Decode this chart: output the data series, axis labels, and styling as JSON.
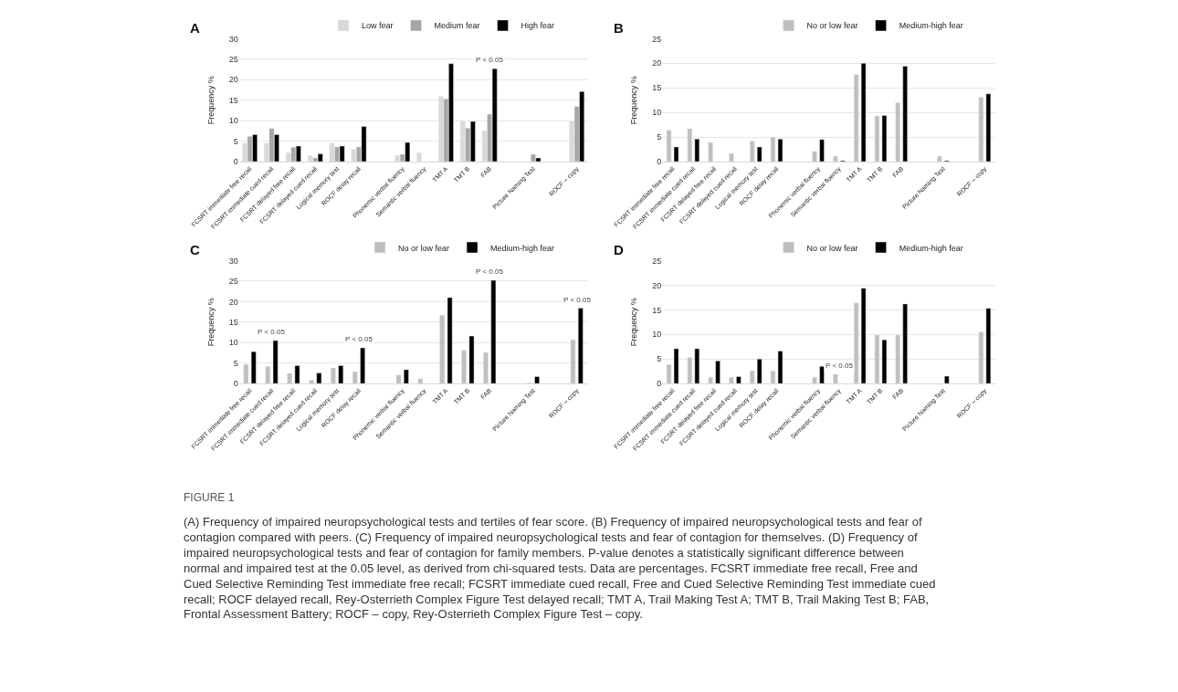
{
  "chart_data": [
    {
      "type": "bar",
      "title": "A",
      "ylabel": "Frequency %",
      "categories": [
        "FCSRT immediate free recall",
        "FCSRT immediate cued recall",
        "FCSRT delayed free recall",
        "FCSRT delayed cued recall",
        "Logical memory test",
        "ROCF delay recall",
        null,
        "Phonemic verbal fluency",
        "Semantic verbal fluency",
        "TMT A",
        "TMT B",
        "FAB",
        null,
        "Picture Naming Test",
        null,
        "ROCF – copy"
      ],
      "ylim": [
        0,
        30
      ],
      "yticks": [
        0,
        5,
        10,
        15,
        20,
        25,
        30
      ],
      "grid": "y",
      "legend": "top right",
      "series": [
        {
          "name": "Low fear",
          "color": "#d9d9d9",
          "values": [
            4.5,
            4.5,
            2.2,
            1.5,
            4.5,
            3.0,
            null,
            1.5,
            2.2,
            15.9,
            9.9,
            7.6,
            null,
            null,
            null,
            9.9
          ]
        },
        {
          "name": "Medium fear",
          "color": "#a6a6a6",
          "values": [
            6.2,
            8.1,
            3.5,
            0.9,
            3.6,
            3.6,
            null,
            1.8,
            null,
            15.3,
            8.2,
            11.6,
            null,
            1.8,
            null,
            13.5
          ]
        },
        {
          "name": "High fear",
          "color": "#000000",
          "values": [
            6.6,
            6.6,
            3.8,
            1.9,
            3.8,
            8.6,
            null,
            4.7,
            null,
            23.9,
            9.8,
            22.7,
            null,
            0.9,
            null,
            17.1
          ]
        }
      ],
      "annotations": [
        {
          "text": "P < 0.05",
          "x": "FAB",
          "y": 22.7
        }
      ]
    },
    {
      "type": "bar",
      "title": "B",
      "ylabel": "Frequency %",
      "categories": [
        "FCSRT immediate free recall",
        "FCSRT immediate cued recall",
        "FCSRT delayed free recall",
        "FCSRT delayed cued recall",
        "Logical memory test",
        "ROCF delay recall",
        null,
        "Phonemic verbal fluency",
        "Semantic verbal fluency",
        "TMT A",
        "TMT B",
        "FAB",
        null,
        "Picture Naming Test",
        null,
        "ROCF – copy"
      ],
      "ylim": [
        0,
        25
      ],
      "yticks": [
        0,
        5,
        10,
        15,
        20,
        25
      ],
      "grid": "y",
      "legend": "top right",
      "series": [
        {
          "name": "No or low fear",
          "color": "#bfbfbf",
          "values": [
            6.4,
            6.7,
            3.9,
            1.7,
            4.2,
            5.0,
            null,
            2.1,
            1.1,
            17.7,
            9.3,
            12.0,
            null,
            1.1,
            null,
            13.1
          ]
        },
        {
          "name": "Medium-high fear",
          "color": "#000000",
          "values": [
            3.0,
            4.6,
            null,
            null,
            3.0,
            4.6,
            null,
            4.5,
            0.2,
            20.0,
            9.4,
            19.4,
            null,
            0.2,
            null,
            13.8
          ]
        }
      ]
    },
    {
      "type": "bar",
      "title": "C",
      "ylabel": "Frequency %",
      "categories": [
        "FCSRT immediate free recall",
        "FCSRT immediate cued recall",
        "FCSRT delayed free recall",
        "FCSRT delayed cued recall",
        "Logical memory test",
        "ROCF delay recall",
        null,
        "Phonemic verbal fluency",
        "Semantic verbal fluency",
        "TMT A",
        "TMT B",
        "FAB",
        null,
        "Picture Naming Test",
        null,
        "ROCF – copy"
      ],
      "ylim": [
        0,
        30
      ],
      "yticks": [
        0,
        5,
        10,
        15,
        20,
        25,
        30
      ],
      "grid": "y",
      "legend": "top right",
      "series": [
        {
          "name": "No or low fear",
          "color": "#bfbfbf",
          "values": [
            4.7,
            4.2,
            2.5,
            0.8,
            3.8,
            2.9,
            null,
            2.1,
            1.2,
            16.7,
            8.1,
            7.6,
            null,
            0.2,
            null,
            10.7
          ]
        },
        {
          "name": "Medium-high fear",
          "color": "#000000",
          "values": [
            7.8,
            10.5,
            4.4,
            2.6,
            4.4,
            8.7,
            null,
            3.4,
            null,
            21.0,
            11.6,
            25.2,
            null,
            1.7,
            null,
            18.4
          ]
        }
      ],
      "annotations": [
        {
          "text": "P < 0.05",
          "x": "FCSRT immediate cued recall",
          "y": 10.5
        },
        {
          "text": "P < 0.05",
          "x": "ROCF delay recall",
          "y": 8.7
        },
        {
          "text": "P < 0.05",
          "x": "FAB",
          "y": 25.2
        },
        {
          "text": "P < 0.05",
          "x": "ROCF – copy",
          "y": 18.4
        }
      ]
    },
    {
      "type": "bar",
      "title": "D",
      "ylabel": "Frequency %",
      "categories": [
        "FCSRT immediate free recall",
        "FCSRT immediate cued recall",
        "FCSRT delayed free recall",
        "FCSRT delayed cued recall",
        "Logical memory test",
        "ROCF delay recall",
        null,
        "Phonemic verbal fluency",
        "Semantic verbal fluency",
        "TMT A",
        "TMT B",
        "FAB",
        null,
        "Picture Naming Test",
        null,
        "ROCF – copy"
      ],
      "ylim": [
        0,
        25
      ],
      "yticks": [
        0,
        5,
        10,
        15,
        20,
        25
      ],
      "grid": "y",
      "legend": "top right",
      "series": [
        {
          "name": "No or low fear",
          "color": "#bfbfbf",
          "values": [
            3.9,
            5.3,
            1.3,
            1.3,
            2.6,
            2.6,
            null,
            1.3,
            1.9,
            16.4,
            9.9,
            9.9,
            null,
            null,
            null,
            10.5
          ]
        },
        {
          "name": "Medium-high fear",
          "color": "#000000",
          "values": [
            7.1,
            7.1,
            4.6,
            1.4,
            5.0,
            6.6,
            null,
            3.5,
            null,
            19.4,
            8.9,
            16.2,
            null,
            1.5,
            null,
            15.3
          ]
        }
      ],
      "annotations": [
        {
          "text": "P < 0.05",
          "x": "Semantic verbal fluency",
          "y": 1.9
        },
        "FIGURE 1",
        "(A) Frequency of impaired neuropsychological tests and tertiles of fear score. (B) Frequency of impaired neuropsychological tests and fear of contagion compared with peers. (C) Frequency of impaired neuropsychological tests and fear of contagion for themselves. (D) Frequency of impaired neuropsychological tests and fear of contagion for family members. P-value denotes a statistically significant difference between normal and impaired test at the 0.05 level, as derived from chi-squared tests. Data are percentages. FCSRT immediate free recall, Free and Cued Selective Reminding Test immediate free recall; FCSRT immediate cued recall, Free and Cued Selective Reminding Test immediate cued recall; ROCF delayed recall, Rey-Osterrieth Complex Figure Test delayed recall; TMT A, Trail Making Test A; TMT B, Trail Making Test B; FAB, Frontal Assessment Battery; ROCF – copy, Rey-Osterrieth Complex Figure Test – copy."
      ]
    }
  ]
}
